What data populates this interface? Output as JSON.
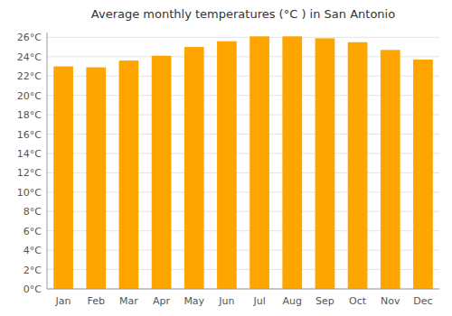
{
  "chart_data": {
    "type": "bar",
    "title": "Average monthly temperatures (°C ) in San Antonio",
    "categories": [
      "Jan",
      "Feb",
      "Mar",
      "Apr",
      "May",
      "Jun",
      "Jul",
      "Aug",
      "Sep",
      "Oct",
      "Nov",
      "Dec"
    ],
    "values": [
      23.0,
      22.9,
      23.6,
      24.1,
      25.0,
      25.6,
      26.1,
      26.1,
      25.9,
      25.5,
      24.7,
      23.7
    ],
    "color": "#FFA500",
    "ylim": [
      0,
      26.5
    ],
    "yticks": [
      {
        "value": 0,
        "label": "0°C"
      },
      {
        "value": 2,
        "label": "2°C"
      },
      {
        "value": 4,
        "label": "4°C"
      },
      {
        "value": 6,
        "label": "6°C"
      },
      {
        "value": 8,
        "label": "8°C"
      },
      {
        "value": 10,
        "label": "10°C"
      },
      {
        "value": 12,
        "label": "12°C"
      },
      {
        "value": 14,
        "label": "14°C"
      },
      {
        "value": 16,
        "label": "16°C"
      },
      {
        "value": 18,
        "label": "18°C"
      },
      {
        "value": 20,
        "label": "20°C"
      },
      {
        "value": 22,
        "label": "22°C"
      },
      {
        "value": 24,
        "label": "24°C"
      },
      {
        "value": 26,
        "label": "26°C"
      }
    ],
    "grid": true
  }
}
